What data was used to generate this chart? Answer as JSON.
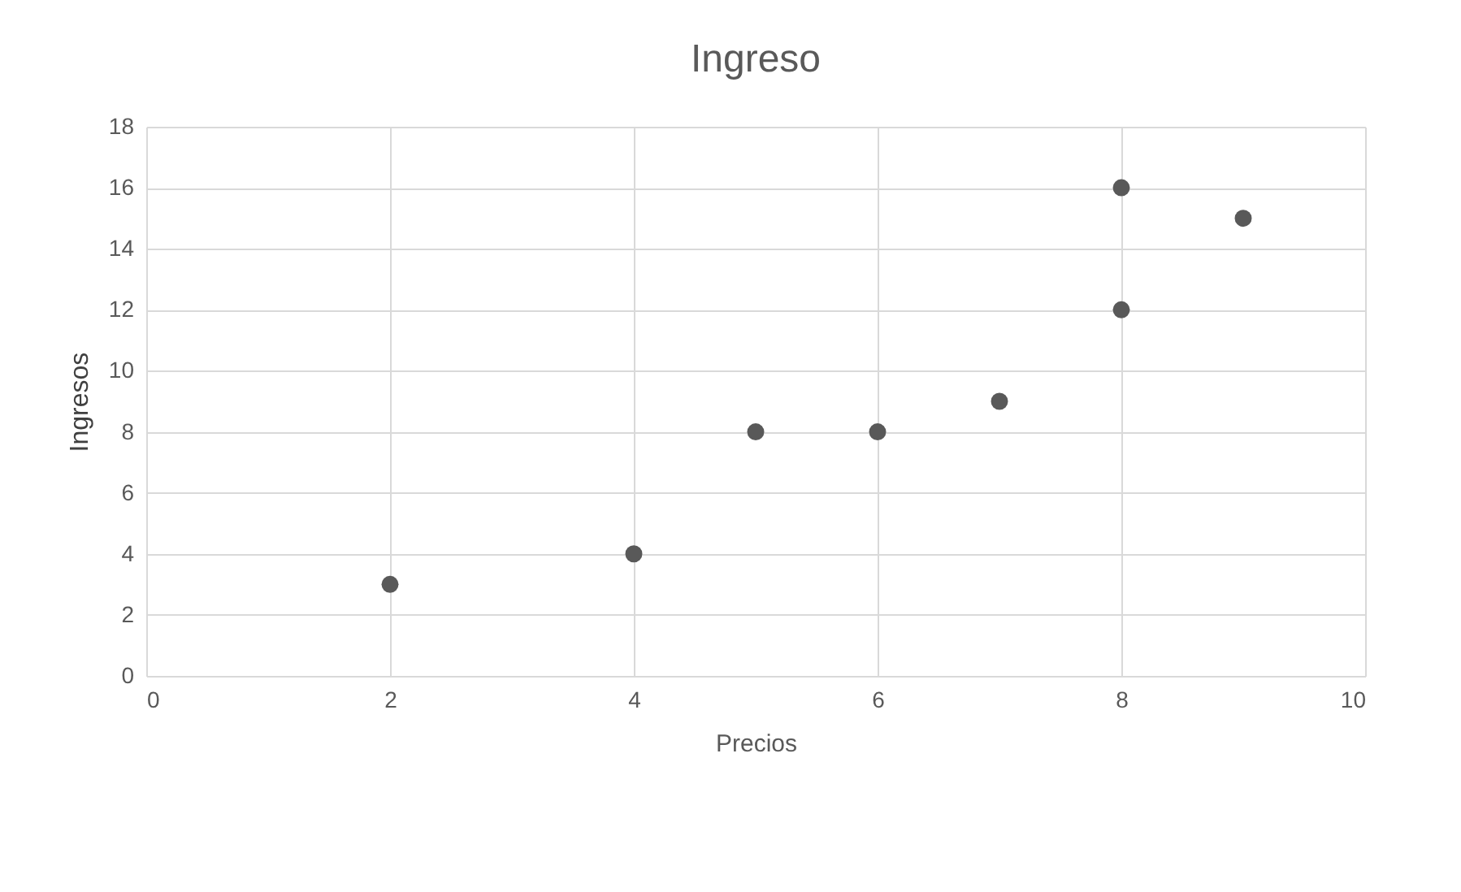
{
  "chart_data": {
    "type": "scatter",
    "title": "Ingreso",
    "xlabel": "Precios",
    "ylabel": "Ingresos",
    "x": [
      2,
      4,
      5,
      6,
      7,
      8,
      8,
      9
    ],
    "series": [
      {
        "color": "#595959",
        "values": [
          3,
          4,
          8,
          8,
          9,
          16,
          12,
          15
        ]
      }
    ],
    "xlim": [
      0,
      10
    ],
    "xticks": [
      0,
      2,
      4,
      6,
      8,
      10
    ],
    "ylim": [
      0,
      18
    ],
    "yticks": [
      0,
      2,
      4,
      6,
      8,
      10,
      12,
      14,
      16,
      18
    ],
    "grid": true,
    "marker": "circle"
  }
}
